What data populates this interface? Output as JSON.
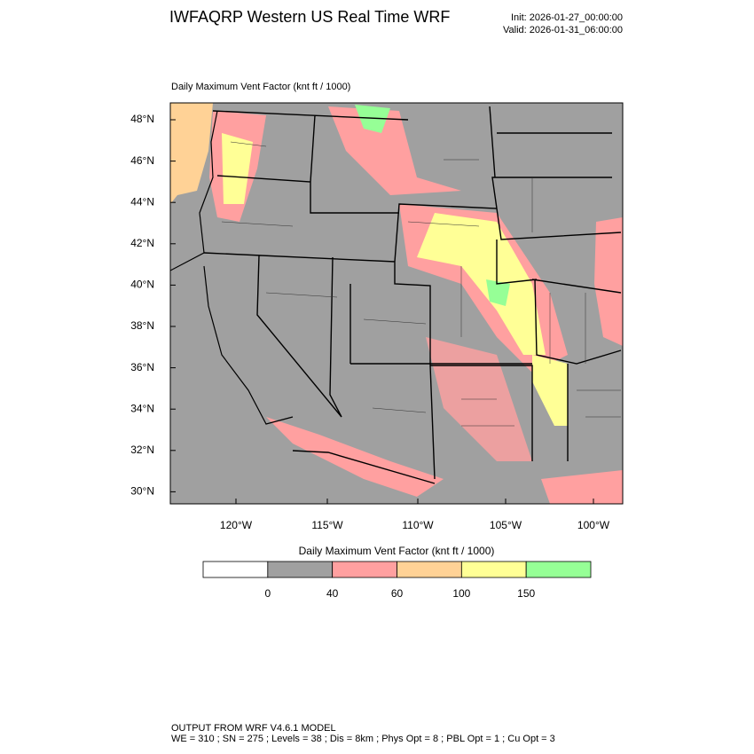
{
  "header": {
    "title": "IWFAQRP Western US Real Time WRF",
    "init": "Init: 2026-01-27_00:00:00",
    "valid": "Valid: 2026-01-31_06:00:00"
  },
  "map": {
    "title": "Daily Maximum Vent Factor   (knt ft / 1000)",
    "lat_labels": [
      "48°N",
      "46°N",
      "44°N",
      "42°N",
      "40°N",
      "38°N",
      "36°N",
      "34°N",
      "32°N",
      "30°N"
    ],
    "lon_labels": [
      "120°W",
      "115°W",
      "110°W",
      "105°W",
      "100°W"
    ]
  },
  "colorbar": {
    "title": "Daily Maximum Vent Factor  (knt ft / 1000)",
    "labels": [
      "0",
      "40",
      "60",
      "100",
      "150"
    ],
    "colors": [
      "#ffffff",
      "#a0a0a0",
      "#ffa0a0",
      "#ffd296",
      "#ffff96",
      "#96ff96"
    ]
  },
  "footer": {
    "line1": "OUTPUT FROM WRF V4.6.1 MODEL",
    "line2": "WE = 310 ; SN = 275 ; Levels = 38 ; Dis = 8km ; Phys Opt = 8 ; PBL Opt = 1 ; Cu Opt = 3"
  }
}
